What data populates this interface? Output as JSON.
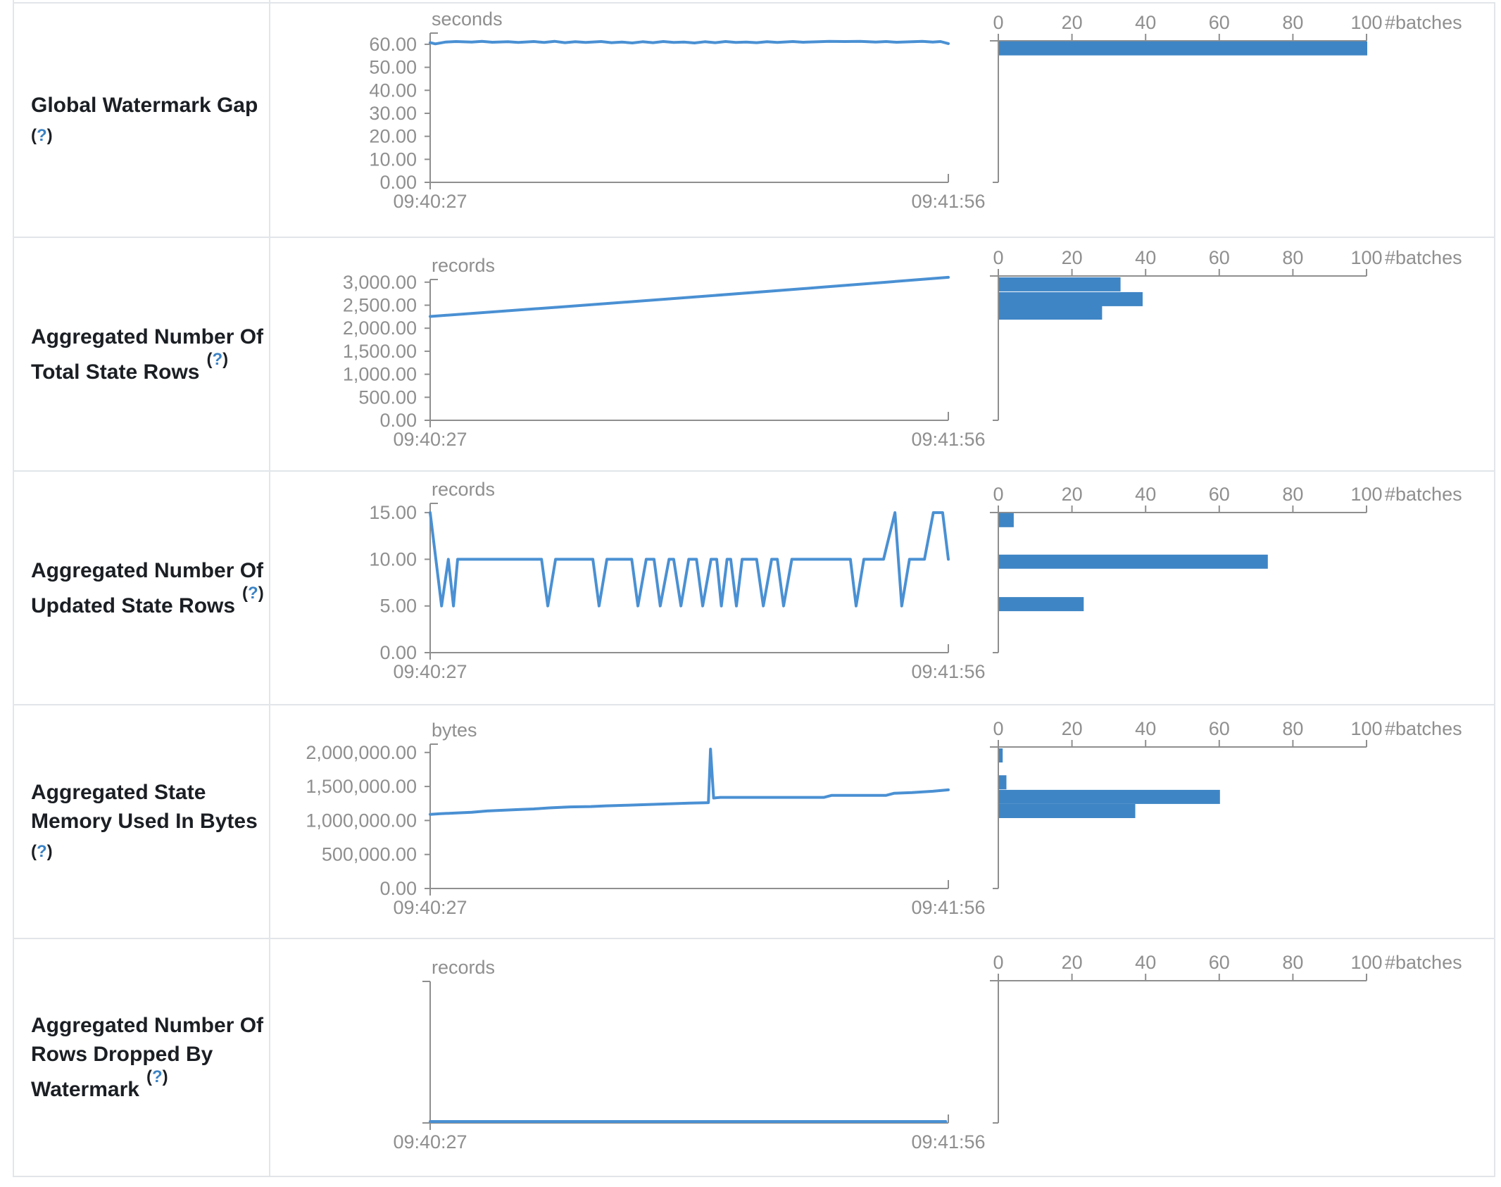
{
  "chart_data": {
    "type": "table-of-charts",
    "x_axis": {
      "start_label": "09:40:27",
      "end_label": "09:41:56"
    },
    "histogram_axis": {
      "tick_labels": [
        "0",
        "20",
        "40",
        "60",
        "80",
        "100"
      ],
      "tick_values": [
        0,
        20,
        40,
        60,
        80,
        100
      ],
      "unit_label": "#batches"
    },
    "rows": [
      {
        "label": "Global Watermark Gap",
        "label_lines": [
          "Global Watermark Gap"
        ],
        "help_open": "(",
        "help": "?",
        "help_close": ")",
        "timeline": {
          "type": "line",
          "unit": "seconds",
          "ylim": [
            0,
            63
          ],
          "yticks": [
            {
              "v": 60,
              "label": "60.00"
            },
            {
              "v": 50,
              "label": "50.00"
            },
            {
              "v": 40,
              "label": "40.00"
            },
            {
              "v": 30,
              "label": "30.00"
            },
            {
              "v": 20,
              "label": "20.00"
            },
            {
              "v": 10,
              "label": "10.00"
            },
            {
              "v": 0,
              "label": "0.00"
            }
          ],
          "x_start": "09:40:27",
          "x_end": "09:41:56",
          "points": [
            [
              0,
              60.7
            ],
            [
              0.01,
              60.2
            ],
            [
              0.03,
              61.0
            ],
            [
              0.05,
              61.2
            ],
            [
              0.08,
              61.0
            ],
            [
              0.1,
              61.3
            ],
            [
              0.12,
              60.9
            ],
            [
              0.15,
              61.1
            ],
            [
              0.17,
              60.8
            ],
            [
              0.2,
              61.2
            ],
            [
              0.22,
              60.8
            ],
            [
              0.24,
              61.3
            ],
            [
              0.26,
              60.7
            ],
            [
              0.28,
              61.1
            ],
            [
              0.3,
              60.8
            ],
            [
              0.33,
              61.2
            ],
            [
              0.35,
              60.7
            ],
            [
              0.37,
              61.0
            ],
            [
              0.39,
              60.6
            ],
            [
              0.41,
              61.1
            ],
            [
              0.43,
              60.7
            ],
            [
              0.45,
              61.2
            ],
            [
              0.47,
              60.8
            ],
            [
              0.49,
              61.0
            ],
            [
              0.51,
              60.6
            ],
            [
              0.53,
              61.1
            ],
            [
              0.55,
              60.7
            ],
            [
              0.57,
              61.2
            ],
            [
              0.59,
              60.8
            ],
            [
              0.61,
              61.0
            ],
            [
              0.63,
              60.7
            ],
            [
              0.65,
              61.1
            ],
            [
              0.67,
              60.8
            ],
            [
              0.7,
              61.2
            ],
            [
              0.72,
              60.9
            ],
            [
              0.75,
              61.1
            ],
            [
              0.77,
              61.3
            ],
            [
              0.8,
              61.2
            ],
            [
              0.83,
              61.3
            ],
            [
              0.86,
              61.0
            ],
            [
              0.88,
              61.2
            ],
            [
              0.9,
              60.9
            ],
            [
              0.93,
              61.1
            ],
            [
              0.95,
              61.3
            ],
            [
              0.97,
              61.0
            ],
            [
              0.985,
              61.2
            ],
            [
              1,
              60.3
            ]
          ]
        },
        "histogram": {
          "type": "bar",
          "unit": "#batches",
          "bars": [
            {
              "top_value": 61.3,
              "count": 100
            }
          ]
        }
      },
      {
        "label": "Aggregated Number Of Total State Rows",
        "label_lines": [
          "Aggregated Number Of",
          "Total State Rows"
        ],
        "help_open": "(",
        "help": "?",
        "help_close": ")",
        "timeline": {
          "type": "line",
          "unit": "records",
          "ylim": [
            0,
            3150
          ],
          "yticks": [
            {
              "v": 3000,
              "label": "3,000.00"
            },
            {
              "v": 2500,
              "label": "2,500.00"
            },
            {
              "v": 2000,
              "label": "2,000.00"
            },
            {
              "v": 1500,
              "label": "1,500.00"
            },
            {
              "v": 1000,
              "label": "1,000.00"
            },
            {
              "v": 500,
              "label": "500.00"
            },
            {
              "v": 0,
              "label": "0.00"
            }
          ],
          "x_start": "09:40:27",
          "x_end": "09:41:56",
          "points": [
            [
              0,
              2255
            ],
            [
              0.25,
              2460
            ],
            [
              0.5,
              2670
            ],
            [
              0.75,
              2885
            ],
            [
              1,
              3105
            ]
          ]
        },
        "histogram": {
          "type": "bar",
          "unit": "#batches",
          "bars": [
            {
              "top_value": 3105,
              "count": 33
            },
            {
              "top_value": 2785,
              "count": 39
            },
            {
              "top_value": 2492,
              "count": 28
            }
          ]
        }
      },
      {
        "label": "Aggregated Number Of Updated State Rows",
        "label_lines": [
          "Aggregated Number Of",
          "Updated State Rows"
        ],
        "help_open": "(",
        "help": "?",
        "help_close": ")",
        "timeline": {
          "type": "line",
          "unit": "records",
          "ylim": [
            0,
            15.5
          ],
          "yticks": [
            {
              "v": 15,
              "label": "15.00"
            },
            {
              "v": 10,
              "label": "10.00"
            },
            {
              "v": 5,
              "label": "5.00"
            },
            {
              "v": 0,
              "label": "0.00"
            }
          ],
          "x_start": "09:40:27",
          "x_end": "09:41:56",
          "points": [
            [
              0,
              15
            ],
            [
              0.022,
              5
            ],
            [
              0.035,
              10
            ],
            [
              0.045,
              5
            ],
            [
              0.053,
              10
            ],
            [
              0.215,
              10
            ],
            [
              0.227,
              5
            ],
            [
              0.242,
              10
            ],
            [
              0.314,
              10
            ],
            [
              0.326,
              5
            ],
            [
              0.341,
              10
            ],
            [
              0.389,
              10
            ],
            [
              0.401,
              5
            ],
            [
              0.417,
              10
            ],
            [
              0.432,
              10
            ],
            [
              0.444,
              5
            ],
            [
              0.461,
              10
            ],
            [
              0.47,
              10
            ],
            [
              0.484,
              5
            ],
            [
              0.499,
              10
            ],
            [
              0.514,
              10
            ],
            [
              0.526,
              5
            ],
            [
              0.542,
              10
            ],
            [
              0.553,
              10
            ],
            [
              0.562,
              5
            ],
            [
              0.573,
              10
            ],
            [
              0.58,
              10
            ],
            [
              0.591,
              5
            ],
            [
              0.602,
              10
            ],
            [
              0.63,
              10
            ],
            [
              0.643,
              5
            ],
            [
              0.659,
              10
            ],
            [
              0.67,
              10
            ],
            [
              0.682,
              5
            ],
            [
              0.698,
              10
            ],
            [
              0.811,
              10
            ],
            [
              0.822,
              5
            ],
            [
              0.837,
              10
            ],
            [
              0.875,
              10
            ],
            [
              0.897,
              15
            ],
            [
              0.91,
              5
            ],
            [
              0.925,
              10
            ],
            [
              0.954,
              10
            ],
            [
              0.971,
              15
            ],
            [
              0.989,
              15
            ],
            [
              1,
              10
            ]
          ]
        },
        "histogram": {
          "type": "bar",
          "unit": "#batches",
          "bars": [
            {
              "top_value": 14.95,
              "count": 4
            },
            {
              "top_value": 10.5,
              "count": 73
            },
            {
              "top_value": 5.95,
              "count": 23
            }
          ]
        }
      },
      {
        "label": "Aggregated State Memory Used In Bytes",
        "label_lines": [
          "Aggregated State",
          "Memory Used In Bytes"
        ],
        "help_open": "(",
        "help": "?",
        "help_close": ")",
        "timeline": {
          "type": "line",
          "unit": "bytes",
          "ylim": [
            0,
            2100000
          ],
          "yticks": [
            {
              "v": 2000000,
              "label": "2,000,000.00"
            },
            {
              "v": 1500000,
              "label": "1,500,000.00"
            },
            {
              "v": 1000000,
              "label": "1,000,000.00"
            },
            {
              "v": 500000,
              "label": "500,000.00"
            },
            {
              "v": 0,
              "label": "0.00"
            }
          ],
          "x_start": "09:40:27",
          "x_end": "09:41:56",
          "points": [
            [
              0,
              1090000
            ],
            [
              0.02,
              1100000
            ],
            [
              0.05,
              1110000
            ],
            [
              0.08,
              1120000
            ],
            [
              0.11,
              1140000
            ],
            [
              0.14,
              1150000
            ],
            [
              0.17,
              1160000
            ],
            [
              0.2,
              1170000
            ],
            [
              0.23,
              1185000
            ],
            [
              0.27,
              1200000
            ],
            [
              0.31,
              1205000
            ],
            [
              0.34,
              1215000
            ],
            [
              0.38,
              1225000
            ],
            [
              0.42,
              1235000
            ],
            [
              0.46,
              1245000
            ],
            [
              0.5,
              1255000
            ],
            [
              0.53,
              1260000
            ],
            [
              0.537,
              1262000
            ],
            [
              0.541,
              2050000
            ],
            [
              0.547,
              1330000
            ],
            [
              0.56,
              1340000
            ],
            [
              0.76,
              1340000
            ],
            [
              0.775,
              1370000
            ],
            [
              0.88,
              1370000
            ],
            [
              0.895,
              1400000
            ],
            [
              0.93,
              1410000
            ],
            [
              0.97,
              1430000
            ],
            [
              1,
              1450000
            ]
          ]
        },
        "histogram": {
          "type": "bar",
          "unit": "#batches",
          "bars": [
            {
              "top_value": 2060000,
              "count": 1
            },
            {
              "top_value": 1665000,
              "count": 2
            },
            {
              "top_value": 1450000,
              "count": 60
            },
            {
              "top_value": 1242000,
              "count": 37
            }
          ]
        }
      },
      {
        "label": "Aggregated Number Of Rows Dropped By Watermark",
        "label_lines": [
          "Aggregated Number Of",
          "Rows Dropped By",
          "Watermark"
        ],
        "help_open": "(",
        "help": "?",
        "help_close": ")",
        "timeline": {
          "type": "line",
          "unit": "records",
          "ylim": [
            0,
            1
          ],
          "yticks": [],
          "x_start": "09:40:27",
          "x_end": "09:41:56",
          "points": [
            [
              0,
              0
            ],
            [
              0.995,
              0
            ]
          ]
        },
        "histogram": {
          "type": "bar",
          "unit": "#batches",
          "bars": []
        }
      }
    ]
  },
  "colors": {
    "series_line": "#4a90d3",
    "bar_fill": "#3e85c5",
    "axis": "#8f8f8f",
    "border": "#e2e5e9",
    "label_text": "#1b1f24",
    "help_blue": "#3b82c4"
  }
}
